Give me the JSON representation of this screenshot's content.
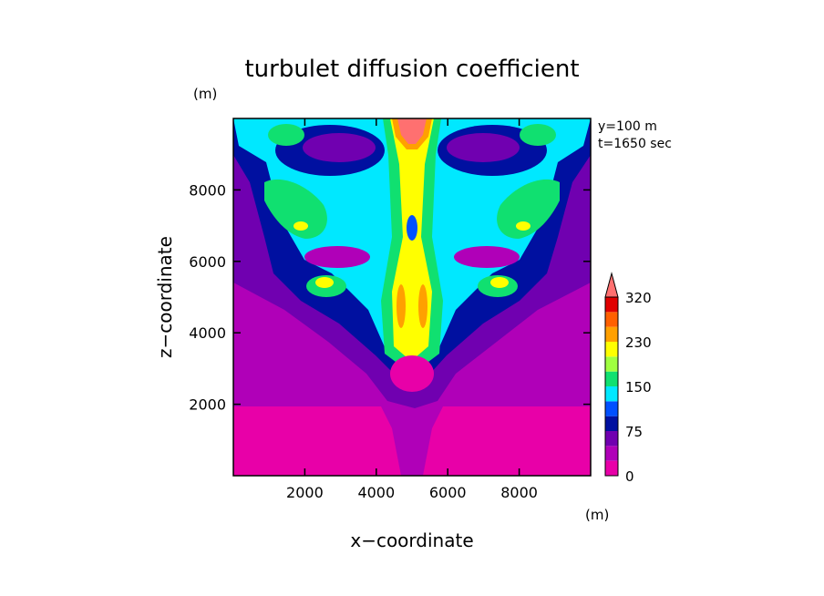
{
  "chart_data": {
    "type": "heatmap",
    "title": "turbulet diffusion coefficient",
    "xlabel": "x−coordinate",
    "ylabel": "z−coordinate",
    "x_unit": "(m)",
    "y_unit": "(m)",
    "xlim": [
      0,
      10000
    ],
    "ylim": [
      0,
      10000
    ],
    "x_ticks": [
      2000,
      4000,
      6000,
      8000
    ],
    "y_ticks": [
      2000,
      4000,
      6000,
      8000
    ],
    "annotations": [
      "y=100 m",
      "t=1650 sec"
    ],
    "colorbar": {
      "levels": [
        0,
        25,
        50,
        75,
        100,
        125,
        150,
        175,
        200,
        230,
        260,
        290,
        320
      ],
      "tick_labels": [
        "0",
        "75",
        "150",
        "230",
        "320"
      ],
      "tick_values": [
        0,
        75,
        150,
        230,
        320
      ],
      "colors": [
        "#e800a8",
        "#b000b8",
        "#7000b0",
        "#0010a0",
        "#0050ff",
        "#00e8ff",
        "#10e070",
        "#a0ff40",
        "#ffff00",
        "#ffa000",
        "#ff6000",
        "#e00000"
      ],
      "extend_color": "#ff7070"
    },
    "field_description_levels": {
      "background_lower": 10,
      "background_upper": 35,
      "plume_outer": 60,
      "plume_mid": 90,
      "plume_inner": 140,
      "core": 210,
      "peak": 330
    }
  }
}
